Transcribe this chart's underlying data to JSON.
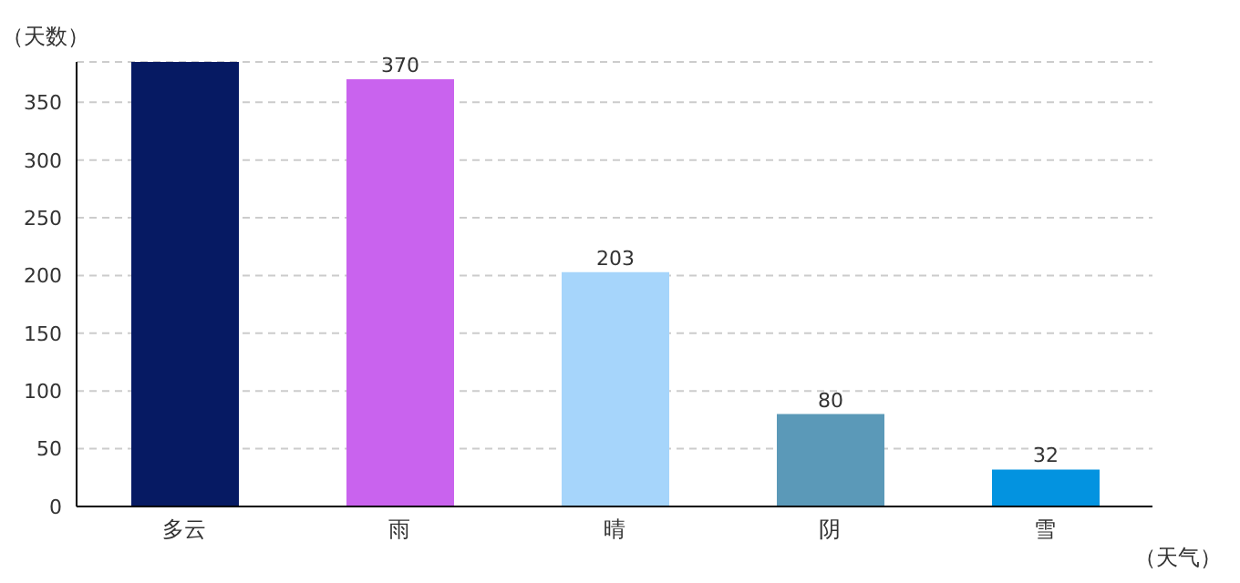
{
  "chart_data": {
    "type": "bar",
    "categories": [
      "多云",
      "雨",
      "晴",
      "阴",
      "雪"
    ],
    "values": [
      385,
      370,
      203,
      80,
      32
    ],
    "colors": [
      "#061a63",
      "#c963ee",
      "#a6d5fb",
      "#5b99b8",
      "#0393e0"
    ],
    "value_labels": [
      null,
      "370",
      "203",
      "80",
      "32"
    ],
    "xlabel": "（天气）",
    "ylabel": "（天数）",
    "ylim": [
      0,
      385
    ],
    "yticks": [
      0,
      50,
      100,
      150,
      200,
      250,
      300,
      350
    ],
    "grid": "y"
  }
}
